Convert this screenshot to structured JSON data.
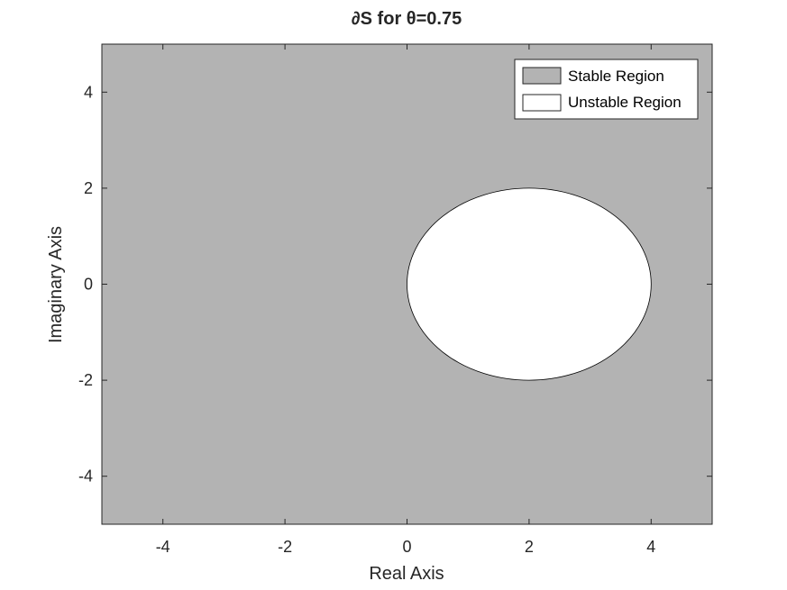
{
  "chart_data": {
    "type": "area",
    "title": "∂S  for θ=0.75",
    "xlabel": "Real Axis",
    "ylabel": "Imaginary Axis",
    "xlim": [
      -5,
      5
    ],
    "ylim": [
      -5,
      5
    ],
    "xticks": [
      -4,
      -2,
      0,
      2,
      4
    ],
    "yticks": [
      -4,
      -2,
      0,
      2,
      4
    ],
    "xtick_labels": [
      "-4",
      "-2",
      "0",
      "2",
      "4"
    ],
    "ytick_labels": [
      "4",
      "2",
      "0",
      "-2",
      "-4"
    ],
    "grid": false,
    "legend_position": "top-right",
    "series": [
      {
        "name": "Stable Region",
        "fill": "#b3b3b3",
        "region": "complement of disk"
      },
      {
        "name": "Unstable Region",
        "fill": "#ffffff",
        "region": "disk",
        "center": [
          2,
          0
        ],
        "radius": 2
      }
    ]
  }
}
